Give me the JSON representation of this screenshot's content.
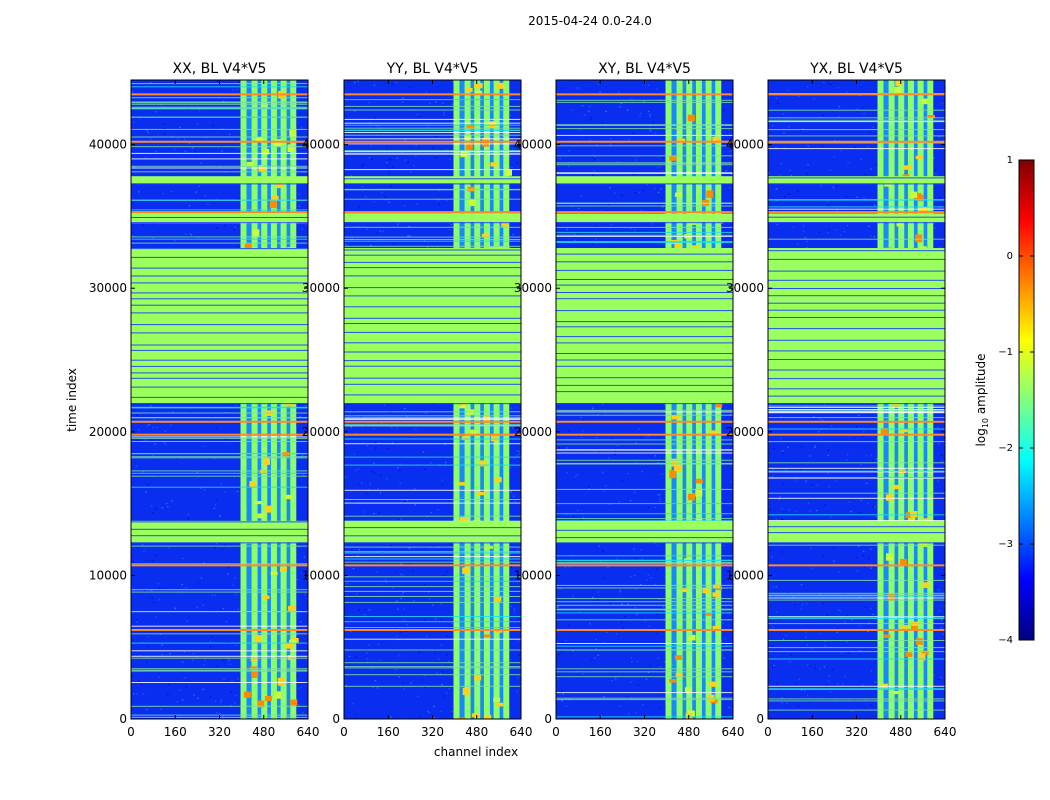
{
  "figure_title": "2015-04-24 0.0-24.0",
  "chart_data": {
    "type": "heatmap",
    "suptitle": "2015-04-24 0.0-24.0",
    "xlabel": "channel index",
    "ylabel": "time index",
    "xlim": [
      0,
      640
    ],
    "ylim": [
      0,
      44500
    ],
    "xticks": [
      0,
      160,
      320,
      480,
      640
    ],
    "yticks": [
      0,
      10000,
      20000,
      30000,
      40000
    ],
    "panels": [
      {
        "title": "XX, BL V4*V5"
      },
      {
        "title": "YY, BL V4*V5"
      },
      {
        "title": "XY, BL V4*V5"
      },
      {
        "title": "YX, BL V4*V5"
      }
    ],
    "colorbar": {
      "label": "log10 amplitude",
      "label_base": "log",
      "label_sub": "10",
      "label_rest": " amplitude",
      "range": [
        -4,
        1
      ],
      "ticks": [
        1,
        0,
        -1,
        -2,
        -3,
        -4
      ],
      "tick_labels": [
        "1",
        "0",
        "−1",
        "−2",
        "−3",
        "−4"
      ],
      "colormap": "jet"
    },
    "bands": {
      "rfi_channel_range": [
        405,
        585
      ],
      "rfi_channel_columns": [
        405,
        445,
        480,
        515,
        550,
        585
      ],
      "flagged_time_ranges": [
        [
          22000,
          32800
        ],
        [
          12300,
          13800
        ],
        [
          37300,
          37800
        ],
        [
          34600,
          35200
        ]
      ],
      "strong_rfi_time_rows": [
        6200,
        10700,
        19800,
        20700,
        35300,
        40200,
        43500
      ]
    }
  }
}
